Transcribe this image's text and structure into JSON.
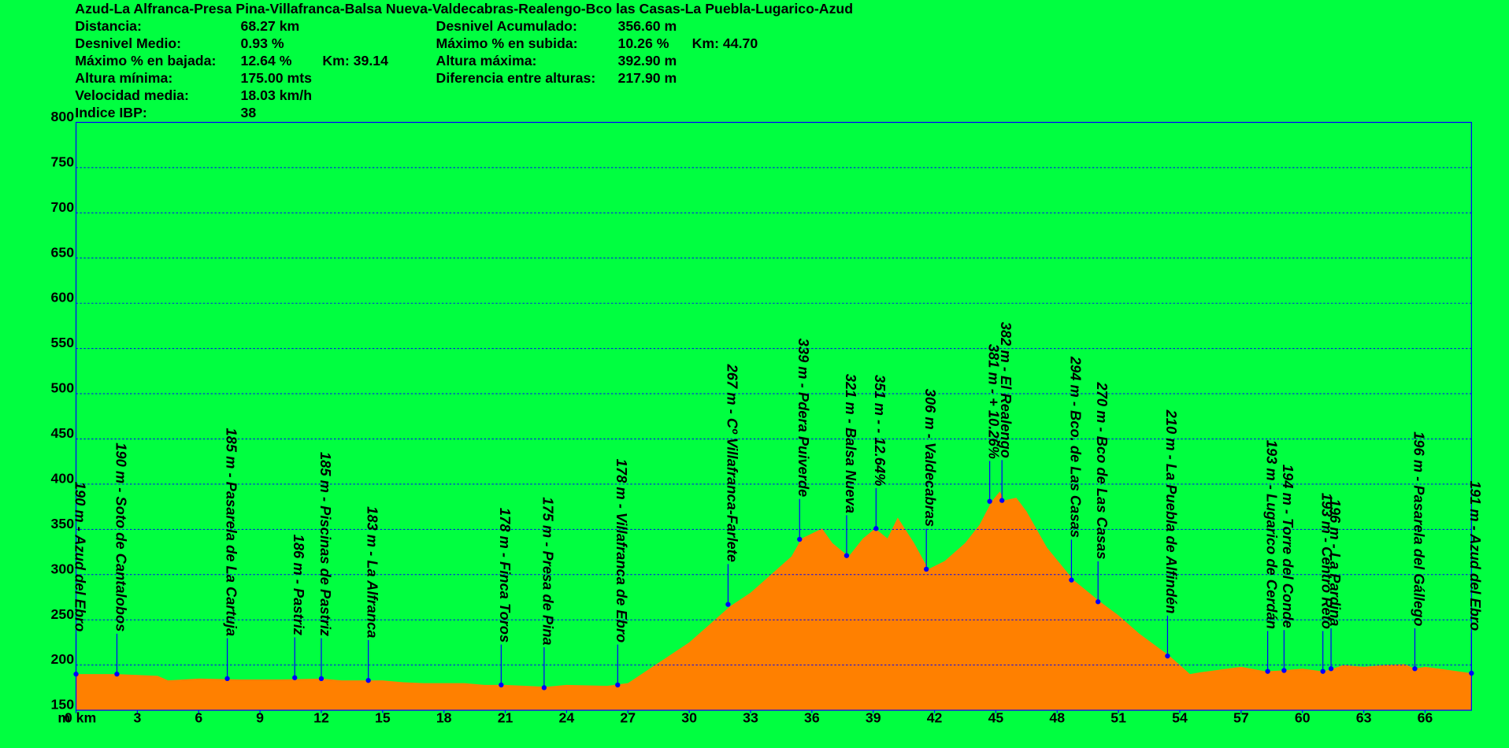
{
  "chart_data": {
    "type": "area",
    "title": "Azud-La Alfranca-Presa Pina-Villafranca-Balsa Nueva-Valdecabras-Realengo-Bco las Casas-La Puebla-Lugarico-Azud",
    "stats_left": [
      {
        "label": "Distancia:",
        "value": "68.27 km"
      },
      {
        "label": "Desnivel Medio:",
        "value": "0.93 %"
      },
      {
        "label": "Máximo % en bajada:",
        "value": "12.64 %",
        "extra": "Km: 39.14"
      },
      {
        "label": "Altura mínima:",
        "value": "175.00 mts"
      },
      {
        "label": "Velocidad media:",
        "value": "18.03 km/h"
      },
      {
        "label": "Indice IBP:",
        "value": "38"
      }
    ],
    "stats_right": [
      {
        "label": "Desnivel Acumulado:",
        "value": "356.60 m"
      },
      {
        "label": "Máximo % en subida:",
        "value": "10.26 %",
        "extra": "Km: 44.70"
      },
      {
        "label": "Altura máxima:",
        "value": "392.90 m"
      },
      {
        "label": "Diferencia entre alturas:",
        "value": "217.90 m"
      }
    ],
    "y_label": "m",
    "color": "#ff8000",
    "grid": true,
    "xlim": [
      0,
      68.27
    ],
    "ylim": [
      150,
      800
    ],
    "xticks": [
      {
        "value": 0,
        "label": "0 km"
      },
      3,
      6,
      9,
      12,
      15,
      18,
      21,
      24,
      27,
      30,
      33,
      36,
      39,
      42,
      45,
      48,
      51,
      54,
      57,
      60,
      63,
      66
    ],
    "yticks": [
      150,
      200,
      250,
      300,
      350,
      400,
      450,
      500,
      550,
      600,
      650,
      700,
      750,
      800
    ],
    "x": [
      0,
      2,
      4,
      4.5,
      6,
      8,
      10,
      12,
      13,
      15,
      16,
      17,
      19,
      20,
      21,
      23,
      24,
      26,
      27,
      28,
      29,
      30,
      31,
      32,
      33,
      34,
      35,
      35.5,
      36.5,
      37,
      37.8,
      38.5,
      39.1,
      39.7,
      40.2,
      41,
      41.7,
      42.5,
      43.5,
      44.2,
      44.8,
      45.2,
      45.4,
      46,
      46.5,
      47.5,
      48.8,
      50.1,
      51,
      52,
      53.5,
      54.5,
      55,
      56,
      57,
      58.2,
      59,
      60,
      61,
      61.5,
      62,
      63,
      64,
      65,
      65.5,
      66,
      67,
      68.27
    ],
    "values": [
      190,
      190,
      188,
      183,
      185,
      184,
      184,
      185,
      183,
      183,
      181,
      180,
      180,
      178,
      178,
      176,
      178,
      177,
      180,
      195,
      210,
      225,
      245,
      265,
      280,
      300,
      320,
      340,
      351,
      335,
      320,
      340,
      351,
      340,
      363,
      335,
      306,
      315,
      335,
      355,
      381,
      392,
      382,
      385,
      370,
      330,
      294,
      270,
      255,
      235,
      210,
      190,
      192,
      195,
      198,
      193,
      194,
      196,
      193,
      196,
      200,
      198,
      200,
      201,
      196,
      198,
      195,
      191
    ],
    "waypoints": {
      "color": "#0000ff",
      "x": [
        0,
        2,
        7.4,
        10.7,
        12.0,
        14.3,
        20.8,
        22.9,
        26.5,
        31.9,
        35.4,
        37.7,
        39.14,
        41.6,
        44.7,
        45.3,
        48.7,
        50.0,
        53.4,
        58.3,
        59.1,
        61.0,
        61.4,
        65.5,
        68.27
      ],
      "values": [
        190,
        190,
        185,
        186,
        185,
        183,
        178,
        175,
        178,
        267,
        339,
        321,
        351,
        306,
        381,
        382,
        294,
        270,
        210,
        193,
        194,
        193,
        196,
        196,
        191
      ],
      "labels": [
        "190 m - Azud del Ebro",
        "190 m - Soto de Cantalobos",
        "185 m - Pasarela de La Cartuja",
        "186 m - Pastriz",
        "185 m - Piscinas de Pastriz",
        "183 m - La Alfranca",
        "178 m - Finca Toros",
        "175 m - Presa de Pina",
        "178 m - Villafranca de Ebro",
        "267 m - Cº Villafranca-Farlete",
        "339 m - Pdera Puiverde",
        "321 m - Balsa Nueva",
        "351 m - - 12.64%",
        "306 m - Valdecabras",
        "381 m - + 10.26%",
        "382 m - El Realengo",
        "294 m - Bco. de Las Casas",
        "270 m - Bco de Las Casas",
        "210 m - La Puebla de Alfindén",
        "193 m - Lugarico de Cerdán",
        "194 m - Torre del Conde",
        "193 m - Centro Reto",
        "196 m - La Pardina",
        "196 m - Pasarela del Gállego",
        "191 m - Azud del Ebro"
      ]
    }
  }
}
